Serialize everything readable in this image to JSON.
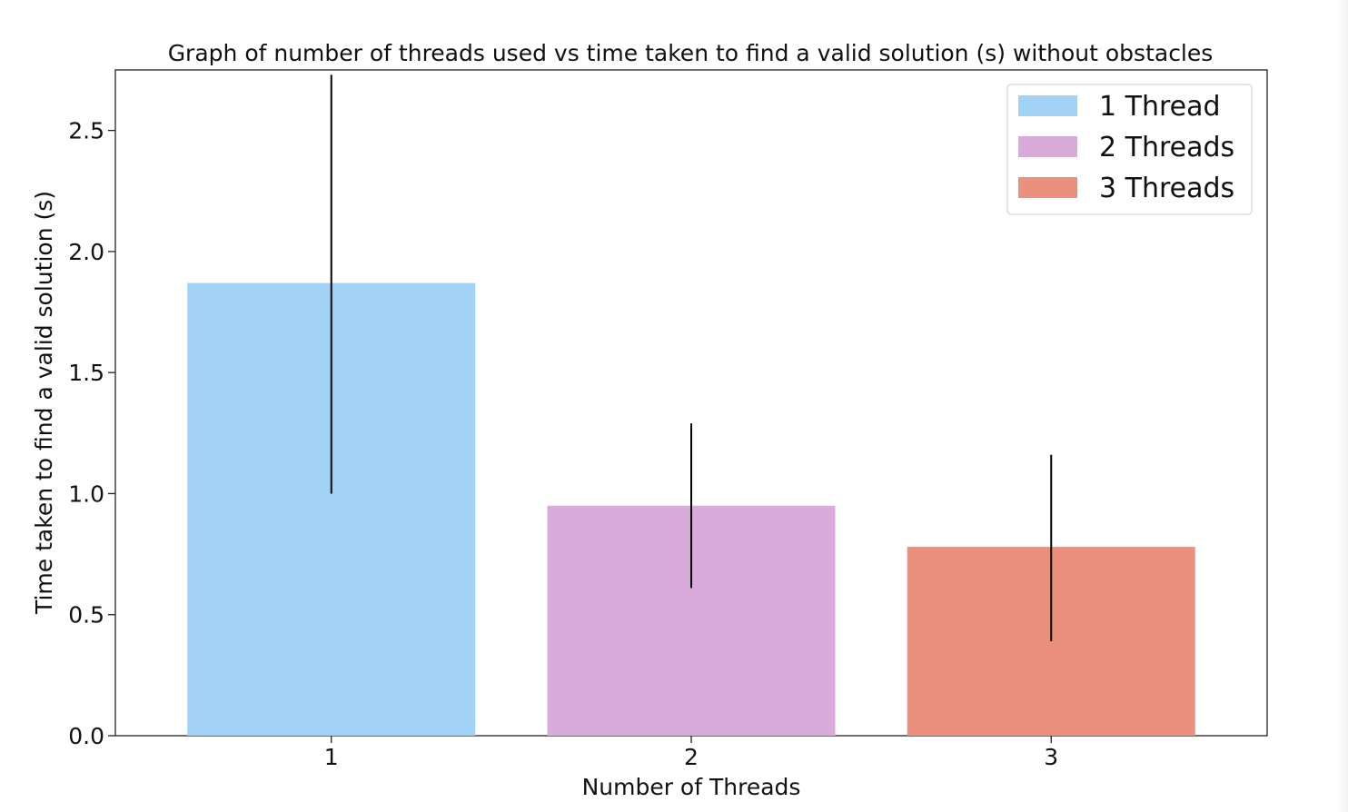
{
  "chart_data": {
    "type": "bar",
    "title": "Graph of number of threads used vs time taken to find a valid solution (s) without obstacles",
    "xlabel": "Number of Threads",
    "ylabel": "Time taken to find a valid solution (s)",
    "categories": [
      "1",
      "2",
      "3"
    ],
    "values": [
      1.87,
      0.95,
      0.78
    ],
    "error_bars": [
      {
        "low": 1.0,
        "high": 2.73
      },
      {
        "low": 0.61,
        "high": 1.29
      },
      {
        "low": 0.39,
        "high": 1.16
      }
    ],
    "colors": [
      "#a1d1f4",
      "#d8abdb",
      "#eb907d"
    ],
    "ylim": [
      0,
      2.75
    ],
    "yticks": [
      "0.0",
      "0.5",
      "1.0",
      "1.5",
      "2.0",
      "2.5"
    ],
    "ytick_values": [
      0,
      0.5,
      1.0,
      1.5,
      2.0,
      2.5
    ],
    "legend": {
      "placement": "top-right",
      "entries": [
        "1 Thread",
        "2 Threads",
        "3 Threads"
      ]
    },
    "grid": false
  }
}
